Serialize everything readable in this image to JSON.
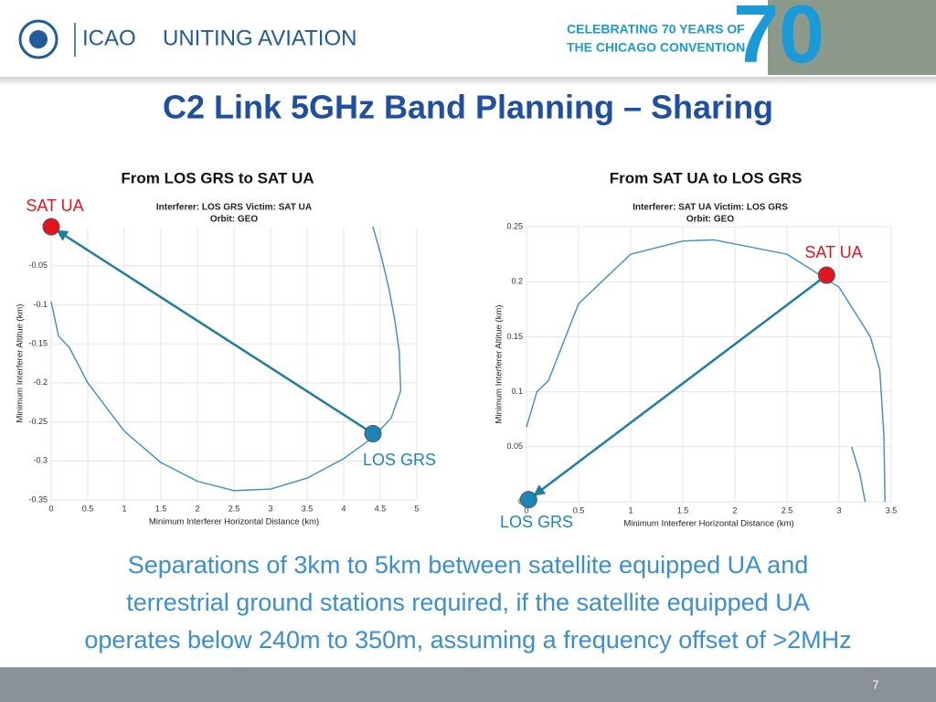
{
  "header": {
    "brand": "ICAO",
    "tagline": "UNITING AVIATION",
    "celebration": [
      "CELEBRATING 70 YEARS OF",
      "THE CHICAGO CONVENTION"
    ],
    "anniversary": "70"
  },
  "title": "C2 Link 5GHz Band Planning – Sharing",
  "chart_data": [
    {
      "type": "line",
      "title": "From LOS GRS to SAT UA",
      "subtitle": [
        "Interferer: LOS GRS   Victim: SAT UA",
        "Orbit: GEO"
      ],
      "x_label": "Minimum Interferer Horizontal Distance (km)",
      "y_label": "Minimum Interferer Altitue (km)",
      "xlim": [
        0,
        5
      ],
      "xticks": [
        0,
        0.5,
        1,
        1.5,
        2,
        2.5,
        3,
        3.5,
        4,
        4.5,
        5
      ],
      "ylim": [
        -0.35,
        0
      ],
      "yticks": [
        -0.35,
        -0.3,
        -0.25,
        -0.2,
        -0.15,
        -0.1,
        -0.05
      ],
      "grid": true,
      "color": "#3b8fc6",
      "x": [
        0,
        0.1,
        0.25,
        0.5,
        1,
        1.5,
        2,
        2.5,
        3,
        3.5,
        4,
        4.4,
        4.65,
        4.78,
        4.76,
        4.7,
        4.62,
        4.52,
        4.4
      ],
      "values": [
        -0.096,
        -0.14,
        -0.155,
        -0.2,
        -0.262,
        -0.302,
        -0.326,
        -0.338,
        -0.336,
        -0.322,
        -0.297,
        -0.27,
        -0.245,
        -0.21,
        -0.16,
        -0.12,
        -0.08,
        -0.04,
        0
      ],
      "points": [
        {
          "label": "SAT UA",
          "x": 0,
          "y": 0,
          "color": "#e5141c"
        },
        {
          "label": "LOS GRS",
          "x": 4.4,
          "y": -0.265,
          "color": "#1b86b6"
        }
      ]
    },
    {
      "type": "line",
      "title": "From SAT UA to LOS GRS",
      "subtitle": [
        "Interferer: SAT UA   Victim: LOS GRS",
        "Orbit: GEO"
      ],
      "x_label": "Minimum Interferer Horizontal Distance (km)",
      "y_label": "Minimum Interferer Altitue (km)",
      "xlim": [
        0,
        3.5
      ],
      "xticks": [
        0,
        0.5,
        1,
        1.5,
        2,
        2.5,
        3,
        3.5
      ],
      "ylim": [
        0,
        0.25
      ],
      "yticks": [
        0,
        0.05,
        0.1,
        0.15,
        0.2,
        0.25
      ],
      "grid": true,
      "color": "#3b8fc6",
      "x": [
        0,
        0.1,
        0.21,
        0.5,
        1,
        1.5,
        1.8,
        2.5,
        3,
        3.3,
        3.39,
        3.43,
        3.44,
        null,
        3.12,
        3.2,
        3.25
      ],
      "values": [
        0.068,
        0.1,
        0.11,
        0.18,
        0.225,
        0.237,
        0.238,
        0.225,
        0.195,
        0.15,
        0.12,
        0.06,
        0,
        null,
        0.05,
        0.025,
        0
      ],
      "points": [
        {
          "label": "SAT UA",
          "x": 2.88,
          "y": 0.206,
          "color": "#e5141c"
        },
        {
          "label": "LOS GRS",
          "x": 0.02,
          "y": 0.002,
          "color": "#1b86b6"
        }
      ]
    }
  ],
  "caption": [
    "Separations of 3km to 5km between satellite equipped UA and",
    "terrestrial ground stations required, if the satellite equipped UA",
    "operates below 240m to 350m, assuming a frequency offset of >2MHz"
  ],
  "footer": {
    "page": 7
  }
}
